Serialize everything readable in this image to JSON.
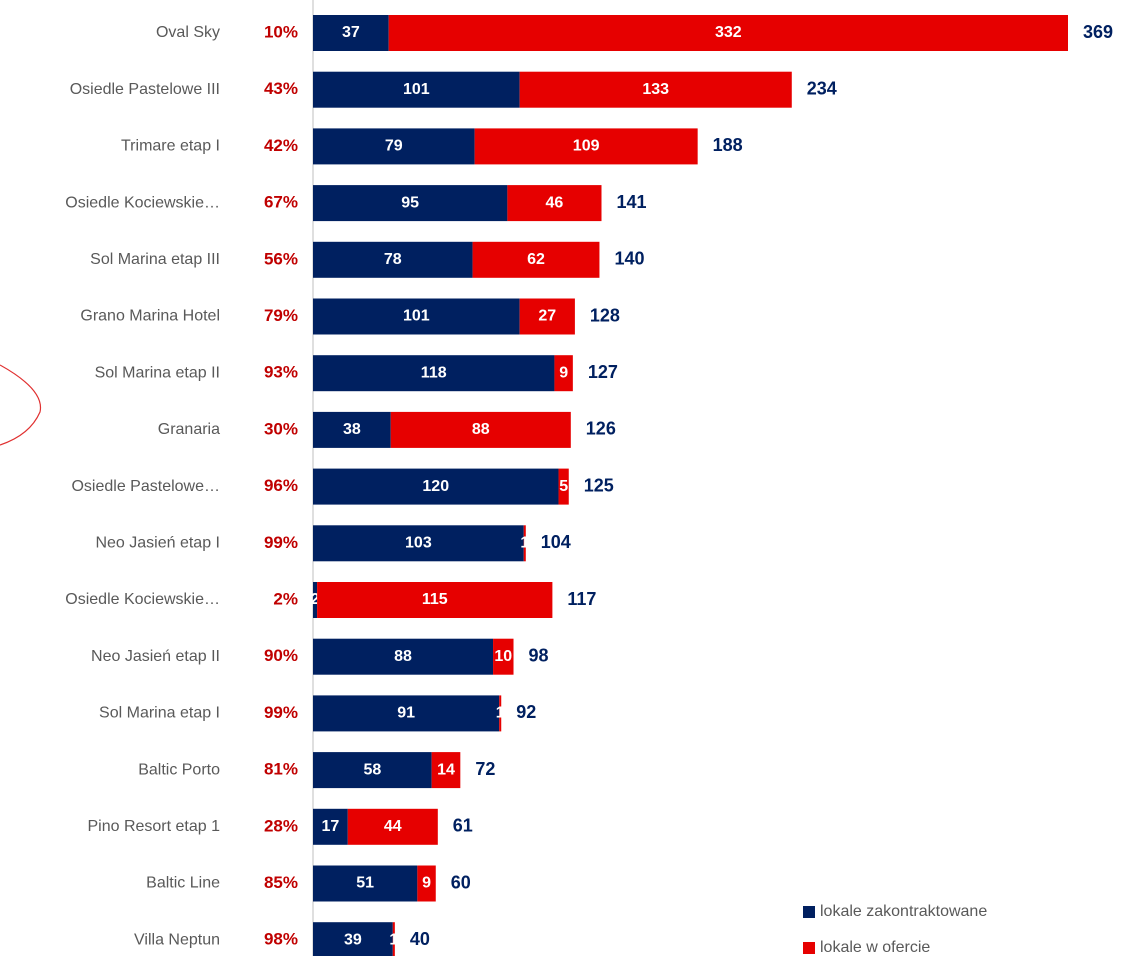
{
  "chart_data": {
    "type": "stacked-bar-horizontal",
    "categories": [
      "Oval Sky",
      "Osiedle Pastelowe III",
      "Trimare etap I",
      "Osiedle Kociewskie…",
      "Sol Marina etap III",
      "Grano Marina Hotel",
      "Sol Marina etap II",
      "Granaria",
      "Osiedle Pastelowe…",
      "Neo Jasień etap I",
      "Osiedle Kociewskie…",
      "Neo Jasień etap II",
      "Sol Marina etap I",
      "Baltic Porto",
      "Pino Resort etap 1",
      "Baltic Line",
      "Villa Neptun"
    ],
    "series": [
      {
        "name": "lokale zakontraktowane",
        "color": "#002060",
        "values": [
          37,
          101,
          79,
          95,
          78,
          101,
          118,
          38,
          120,
          103,
          2,
          88,
          91,
          58,
          17,
          51,
          39
        ]
      },
      {
        "name": "lokale w ofercie",
        "color": "#e60000",
        "values": [
          332,
          133,
          109,
          46,
          62,
          27,
          9,
          88,
          5,
          1,
          115,
          10,
          1,
          14,
          44,
          9,
          1
        ]
      }
    ],
    "totals": [
      369,
      234,
      188,
      141,
      140,
      128,
      127,
      126,
      125,
      104,
      117,
      98,
      92,
      72,
      61,
      60,
      40
    ],
    "share_labels": [
      "10%",
      "43%",
      "42%",
      "67%",
      "56%",
      "79%",
      "93%",
      "30%",
      "96%",
      "99%",
      "2%",
      "90%",
      "99%",
      "81%",
      "28%",
      "85%",
      "98%"
    ],
    "xlim": [
      0,
      369
    ]
  }
}
